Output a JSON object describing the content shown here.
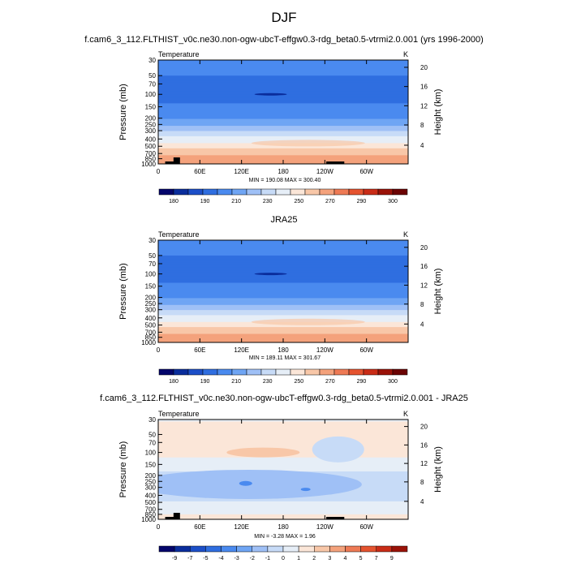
{
  "figure": {
    "title": "DJF",
    "panel1_title": "f.cam6_3_112.FLTHIST_v0c.ne30.non-ogw-ubcT-effgw0.3-rdg_beta0.5-vtrmi2.0.001 (yrs 1996-2000)",
    "panel2_title": "JRA25",
    "panel3_title": "f.cam6_3_112.FLTHIST_v0c.ne30.non-ogw-ubcT-effgw0.3-rdg_beta0.5-vtrmi2.0.001 - JRA25"
  },
  "chart_data": [
    {
      "type": "heatmap",
      "variable": "Temperature",
      "units": "K",
      "ylabel": "Pressure (mb)",
      "y2label": "Height (km)",
      "x_ticks": [
        "0",
        "60E",
        "120E",
        "180",
        "120W",
        "60W"
      ],
      "y_ticks": [
        "30",
        "50",
        "70",
        "100",
        "150",
        "200",
        "250",
        "300",
        "400",
        "500",
        "700",
        "850",
        "1000"
      ],
      "y2_ticks": [
        "4",
        "8",
        "12",
        "16",
        "20"
      ],
      "stats": "MIN = 190.08   MAX = 300.40",
      "colorbar_labels": [
        "180",
        "190",
        "210",
        "230",
        "250",
        "270",
        "290",
        "300"
      ],
      "colorbar_colors": [
        "#04056b",
        "#0a2d9c",
        "#1c4fc8",
        "#2f6ee0",
        "#4a8aef",
        "#6fa5f4",
        "#9fc0f6",
        "#c7dbf7",
        "#e6eef7",
        "#fbe6d8",
        "#f8c7a8",
        "#f4a27c",
        "#ee7a55",
        "#e5532f",
        "#c92c17",
        "#9a1208",
        "#6b0303"
      ],
      "profile_temps": [
        214,
        210,
        207,
        203,
        212,
        220,
        229,
        238,
        254,
        265,
        278,
        285,
        291
      ],
      "topography": [
        [
          8,
          30
        ],
        [
          20,
          30
        ],
        [
          28,
          30
        ],
        [
          35,
          30
        ],
        [
          240,
          255
        ],
        [
          262,
          270
        ]
      ]
    },
    {
      "type": "heatmap",
      "variable": "Temperature",
      "units": "K",
      "ylabel": "Pressure (mb)",
      "y2label": "Height (km)",
      "x_ticks": [
        "0",
        "60E",
        "120E",
        "180",
        "120W",
        "60W"
      ],
      "y_ticks": [
        "30",
        "50",
        "70",
        "100",
        "150",
        "200",
        "250",
        "300",
        "400",
        "500",
        "700",
        "850",
        "1000"
      ],
      "y2_ticks": [
        "4",
        "8",
        "12",
        "16",
        "20"
      ],
      "stats": "MIN = 189.11   MAX = 301.67",
      "colorbar_labels": [
        "180",
        "190",
        "210",
        "230",
        "250",
        "270",
        "290",
        "300"
      ],
      "colorbar_colors": [
        "#04056b",
        "#0a2d9c",
        "#1c4fc8",
        "#2f6ee0",
        "#4a8aef",
        "#6fa5f4",
        "#9fc0f6",
        "#c7dbf7",
        "#e6eef7",
        "#fbe6d8",
        "#f8c7a8",
        "#f4a27c",
        "#ee7a55",
        "#e5532f",
        "#c92c17",
        "#9a1208",
        "#6b0303"
      ],
      "profile_temps": [
        214,
        210,
        207,
        203,
        212,
        220,
        229,
        238,
        254,
        265,
        278,
        285,
        291
      ]
    },
    {
      "type": "heatmap",
      "variable": "Temperature",
      "units": "K",
      "ylabel": "Pressure (mb)",
      "y2label": "Height (km)",
      "x_ticks": [
        "0",
        "60E",
        "120E",
        "180",
        "120W",
        "60W"
      ],
      "y_ticks": [
        "30",
        "50",
        "70",
        "100",
        "150",
        "200",
        "250",
        "300",
        "400",
        "500",
        "700",
        "850",
        "1000"
      ],
      "y2_ticks": [
        "4",
        "8",
        "12",
        "16",
        "20"
      ],
      "stats": "MIN = -3.28   MAX =  1.96",
      "colorbar_labels": [
        "-9",
        "-7",
        "-5",
        "-4",
        "-3",
        "-2",
        "-1",
        "0",
        "1",
        "2",
        "3",
        "4",
        "5",
        "7",
        "9"
      ],
      "colorbar_colors": [
        "#04056b",
        "#0a2d9c",
        "#1c4fc8",
        "#2f6ee0",
        "#4a8aef",
        "#6fa5f4",
        "#9fc0f6",
        "#c7dbf7",
        "#e6eef7",
        "#fbe6d8",
        "#f8c7a8",
        "#f4a27c",
        "#ee7a55",
        "#e5532f",
        "#c92c17",
        "#9a1208"
      ]
    }
  ]
}
